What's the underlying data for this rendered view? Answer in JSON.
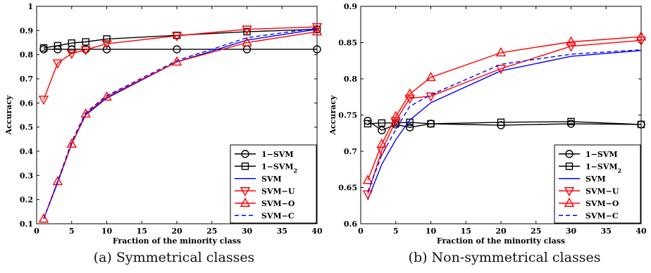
{
  "chart_data": [
    {
      "type": "line",
      "caption": "(a) Symmetrical classes",
      "xlabel": "Fraction of the minority class",
      "ylabel": "Accuracy",
      "xlim": [
        0,
        40
      ],
      "ylim": [
        0.1,
        1.0
      ],
      "xticks": [
        "0",
        "5",
        "10",
        "15",
        "20",
        "25",
        "30",
        "35",
        "40"
      ],
      "yticks": [
        "0.1",
        "0.2",
        "0.3",
        "0.4",
        "0.5",
        "0.6",
        "0.7",
        "0.8",
        "0.9",
        "1"
      ],
      "grid": false,
      "legend_position": "bottom-right",
      "x": [
        1,
        3,
        5,
        7,
        10,
        20,
        30,
        40
      ],
      "series": [
        {
          "name": "1−SVM",
          "marker": "circle",
          "color": "#000000",
          "dash": "solid",
          "values": [
            0.822,
            0.822,
            0.822,
            0.822,
            0.822,
            0.822,
            0.822,
            0.822
          ]
        },
        {
          "name": "1−SVM",
          "sub": "2",
          "marker": "square",
          "color": "#000000",
          "dash": "solid",
          "values": [
            0.828,
            0.837,
            0.848,
            0.853,
            0.865,
            0.88,
            0.895,
            0.905
          ]
        },
        {
          "name": "SVM",
          "marker": "none",
          "color": "#0000ff",
          "dash": "solid",
          "values": [
            0.12,
            0.27,
            0.43,
            0.55,
            0.62,
            0.77,
            0.86,
            0.905
          ]
        },
        {
          "name": "SVM−U",
          "marker": "triangle-down",
          "color": "#ff0000",
          "dash": "solid",
          "values": [
            0.615,
            0.765,
            0.805,
            0.82,
            0.845,
            0.878,
            0.905,
            0.915
          ]
        },
        {
          "name": "SVM−O",
          "marker": "triangle-up",
          "color": "#ff0000",
          "dash": "solid",
          "values": [
            0.12,
            0.275,
            0.43,
            0.555,
            0.625,
            0.77,
            0.85,
            0.895
          ]
        },
        {
          "name": "SVM−C",
          "marker": "none",
          "color": "#0000ff",
          "dash": "dashed",
          "values": [
            0.12,
            0.275,
            0.44,
            0.56,
            0.63,
            0.775,
            0.87,
            0.91
          ]
        }
      ]
    },
    {
      "type": "line",
      "caption": "(b) Non-symmetrical classes",
      "xlabel": "Fraction of the minority class",
      "ylabel": "Accuracy",
      "xlim": [
        0,
        40
      ],
      "ylim": [
        0.6,
        0.9
      ],
      "xticks": [
        "0",
        "5",
        "10",
        "15",
        "20",
        "25",
        "30",
        "35",
        "40"
      ],
      "yticks": [
        "0.6",
        "0.65",
        "0.7",
        "0.75",
        "0.8",
        "0.85",
        "0.9"
      ],
      "grid": false,
      "legend_position": "bottom-right",
      "x": [
        1,
        3,
        5,
        7,
        10,
        20,
        30,
        40
      ],
      "series": [
        {
          "name": "1−SVM",
          "marker": "circle",
          "color": "#000000",
          "dash": "solid",
          "values": [
            0.742,
            0.729,
            0.737,
            0.733,
            0.738,
            0.736,
            0.738,
            0.737
          ]
        },
        {
          "name": "1−SVM",
          "sub": "2",
          "marker": "square",
          "color": "#000000",
          "dash": "solid",
          "values": [
            0.738,
            0.739,
            0.739,
            0.74,
            0.738,
            0.74,
            0.741,
            0.737
          ]
        },
        {
          "name": "SVM",
          "marker": "none",
          "color": "#0000ff",
          "dash": "solid",
          "values": [
            0.633,
            0.682,
            0.716,
            0.743,
            0.767,
            0.811,
            0.831,
            0.839
          ]
        },
        {
          "name": "SVM−U",
          "marker": "triangle-down",
          "color": "#ff0000",
          "dash": "solid",
          "values": [
            0.641,
            0.701,
            0.742,
            0.773,
            0.776,
            0.814,
            0.845,
            0.853
          ]
        },
        {
          "name": "SVM−O",
          "marker": "triangle-up",
          "color": "#ff0000",
          "dash": "solid",
          "values": [
            0.66,
            0.71,
            0.748,
            0.779,
            0.802,
            0.836,
            0.851,
            0.858
          ]
        },
        {
          "name": "SVM−C",
          "marker": "none",
          "color": "#0000ff",
          "dash": "dashed",
          "values": [
            0.644,
            0.695,
            0.73,
            0.762,
            0.778,
            0.82,
            0.834,
            0.84
          ]
        }
      ]
    }
  ]
}
